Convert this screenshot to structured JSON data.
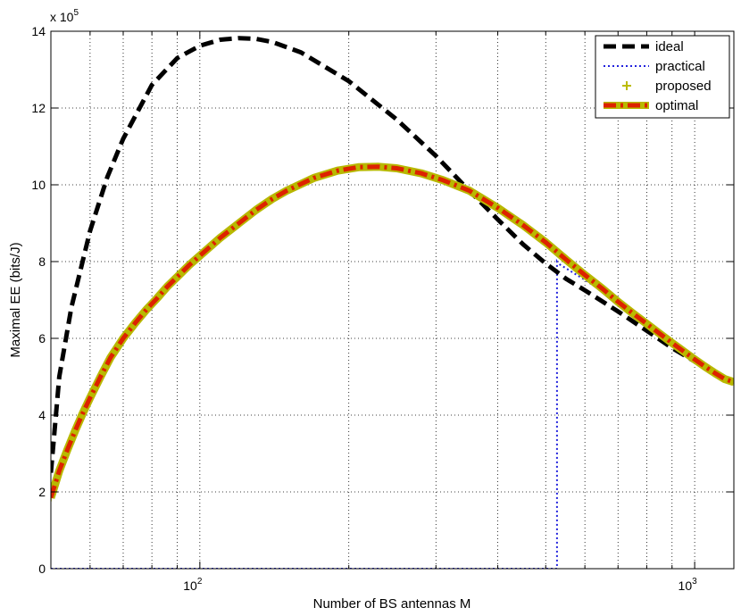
{
  "chart_data": {
    "type": "line",
    "title": "",
    "xlabel": "Number of BS antennas M",
    "ylabel": "Maximal EE (bits/J)",
    "xscale": "log",
    "xlim": [
      50,
      1200
    ],
    "ylim": [
      0,
      1400000
    ],
    "y_multiplier_label": "x 10",
    "y_multiplier_exponent": "5",
    "grid": true,
    "legend_position": "top-right",
    "x_ticks": [
      {
        "value": 100,
        "base": "10",
        "exp": "2"
      },
      {
        "value": 1000,
        "base": "10",
        "exp": "3"
      }
    ],
    "y_ticks": [
      {
        "value": 0,
        "label": "0"
      },
      {
        "value": 200000,
        "label": "2"
      },
      {
        "value": 400000,
        "label": "4"
      },
      {
        "value": 600000,
        "label": "6"
      },
      {
        "value": 800000,
        "label": "8"
      },
      {
        "value": 1000000,
        "label": "10"
      },
      {
        "value": 1200000,
        "label": "12"
      },
      {
        "value": 1400000,
        "label": "14"
      }
    ],
    "series": [
      {
        "name": "ideal",
        "color": "#000000",
        "style": "dashed",
        "x": [
          50,
          52,
          55,
          60,
          65,
          70,
          80,
          90,
          100,
          110,
          120,
          130,
          140,
          160,
          200,
          250,
          300,
          350,
          400,
          450,
          500,
          550,
          600,
          700,
          800,
          900,
          1000,
          1100,
          1200
        ],
        "y": [
          250000,
          500000,
          680000,
          880000,
          1020000,
          1120000,
          1260000,
          1330000,
          1362000,
          1378000,
          1382000,
          1380000,
          1372000,
          1345000,
          1270000,
          1170000,
          1075000,
          985000,
          910000,
          845000,
          795000,
          755000,
          725000,
          670000,
          620000,
          575000,
          540000,
          510000,
          485000
        ]
      },
      {
        "name": "practical",
        "color": "#2222dd",
        "style": "dotted",
        "x": [
          50,
          100,
          200,
          400,
          525,
          527,
          527,
          530,
          600,
          700,
          800,
          900,
          1000,
          1100,
          1200
        ],
        "y": [
          0,
          0,
          0,
          0,
          0,
          0,
          800000,
          795000,
          752000,
          695000,
          640000,
          590000,
          550000,
          515000,
          487000
        ]
      },
      {
        "name": "proposed",
        "color": "#bbbb00",
        "style": "markers",
        "x": [
          50,
          52,
          54,
          56,
          58,
          60,
          63,
          66,
          70,
          74,
          78,
          82,
          86,
          90,
          95,
          100,
          110,
          120,
          130,
          140,
          150,
          170,
          190,
          210,
          230,
          250,
          280,
          310,
          350,
          400,
          450,
          500,
          550,
          600,
          650,
          700,
          750,
          800,
          850,
          900,
          950,
          1000,
          1050,
          1100,
          1150,
          1200
        ],
        "y": [
          185000,
          255000,
          310000,
          360000,
          405000,
          445000,
          500000,
          550000,
          600000,
          640000,
          675000,
          705000,
          735000,
          760000,
          790000,
          815000,
          862000,
          900000,
          935000,
          963000,
          985000,
          1018000,
          1037000,
          1046000,
          1047000,
          1043000,
          1030000,
          1012000,
          985000,
          940000,
          895000,
          850000,
          805000,
          765000,
          730000,
          695000,
          665000,
          638000,
          612000,
          588000,
          566000,
          545000,
          526000,
          509000,
          494000,
          486000
        ]
      },
      {
        "name": "optimal",
        "color": "#dd2200",
        "style": "dashdot",
        "x": [
          50,
          52,
          54,
          56,
          58,
          60,
          63,
          66,
          70,
          74,
          78,
          82,
          86,
          90,
          95,
          100,
          110,
          120,
          130,
          140,
          150,
          170,
          190,
          210,
          230,
          250,
          280,
          310,
          350,
          400,
          450,
          500,
          550,
          600,
          650,
          700,
          750,
          800,
          850,
          900,
          950,
          1000,
          1050,
          1100,
          1150,
          1200
        ],
        "y": [
          185000,
          255000,
          310000,
          360000,
          405000,
          445000,
          500000,
          550000,
          600000,
          640000,
          675000,
          705000,
          735000,
          760000,
          790000,
          815000,
          862000,
          900000,
          935000,
          963000,
          985000,
          1018000,
          1037000,
          1046000,
          1047000,
          1043000,
          1030000,
          1012000,
          985000,
          940000,
          895000,
          850000,
          805000,
          765000,
          730000,
          695000,
          665000,
          638000,
          612000,
          588000,
          566000,
          545000,
          526000,
          509000,
          494000,
          486000
        ]
      }
    ]
  }
}
